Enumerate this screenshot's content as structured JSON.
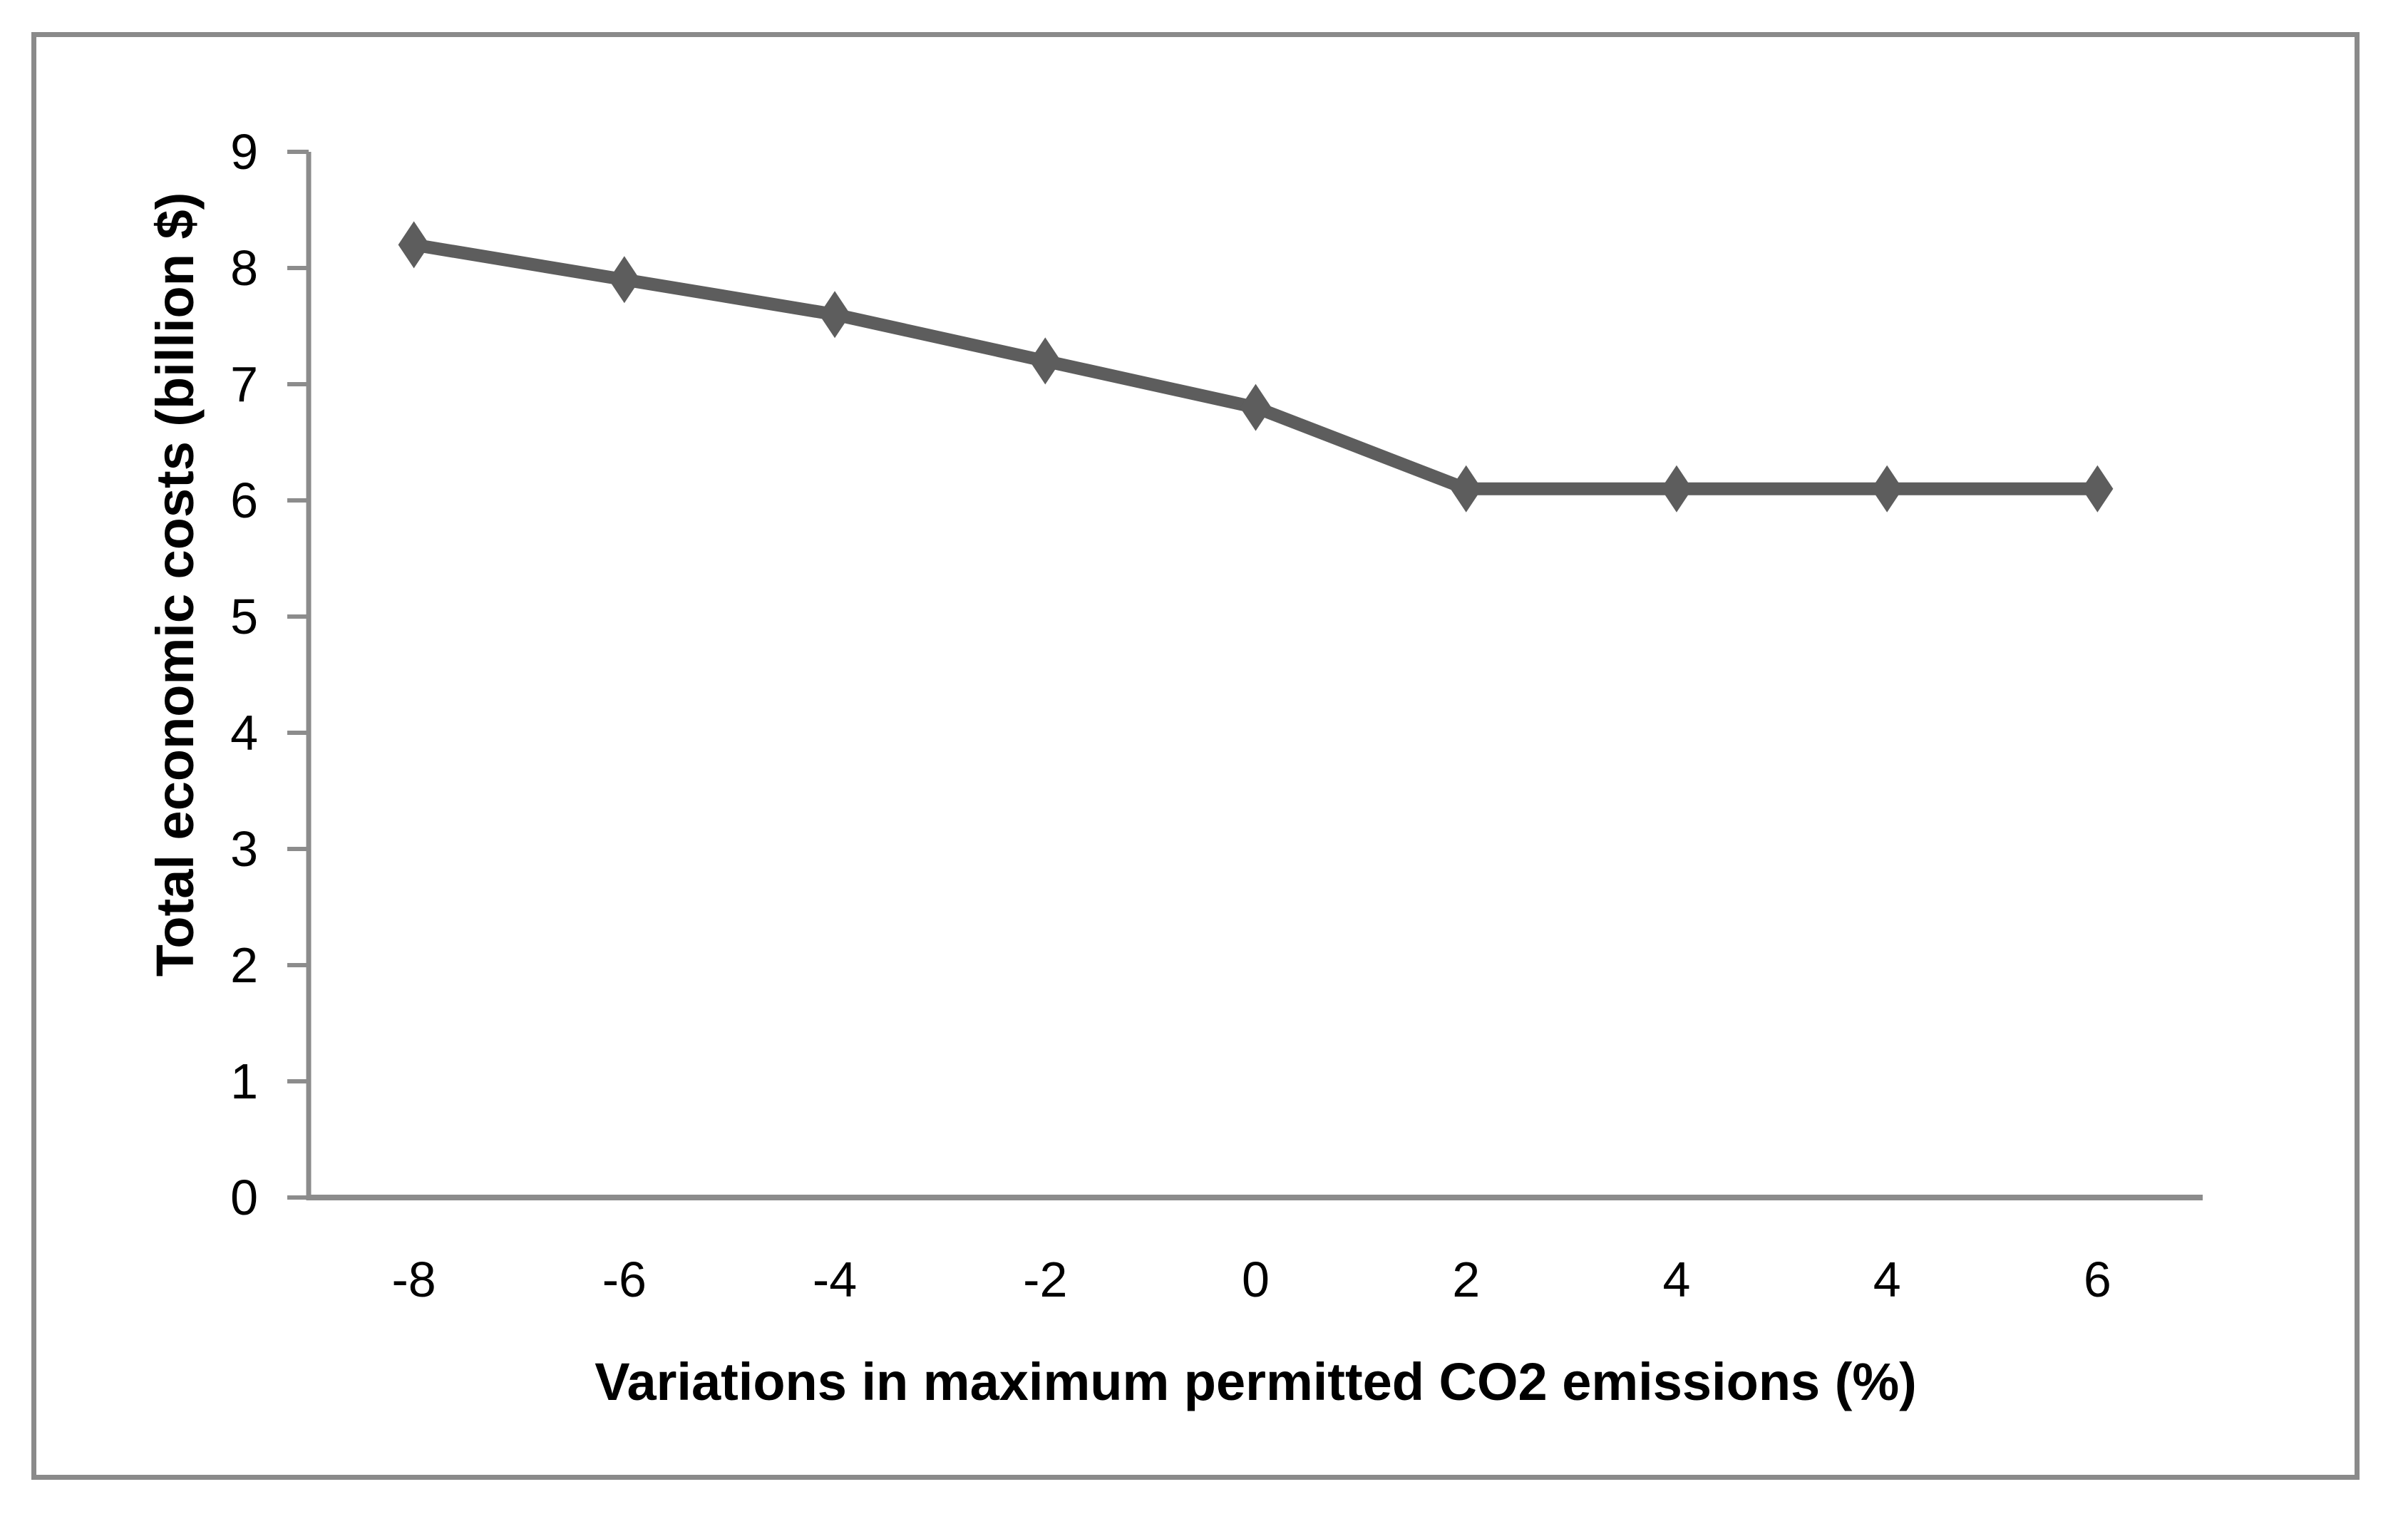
{
  "chart_data": {
    "type": "line",
    "categories": [
      "-8",
      "-6",
      "-4",
      "-2",
      "0",
      "2",
      "4",
      "4",
      "6"
    ],
    "values": [
      8.2,
      7.9,
      7.6,
      7.2,
      6.8,
      6.1,
      6.1,
      6.1,
      6.1
    ],
    "title": "",
    "xlabel": "Variations in maximum permitted CO2 emissions (%)",
    "ylabel": "Total economic costs (billion $)",
    "ylim": [
      0,
      9
    ],
    "yticks": [
      "0",
      "1",
      "2",
      "3",
      "4",
      "5",
      "6",
      "7",
      "8",
      "9"
    ],
    "grid": false,
    "legend": false,
    "marker": "diamond",
    "colors": {
      "line": "#5d5d5d",
      "marker": "#5d5d5d",
      "axis": "#8c8c8c",
      "frame_border": "#8a8a8a",
      "text": "#000000"
    }
  }
}
